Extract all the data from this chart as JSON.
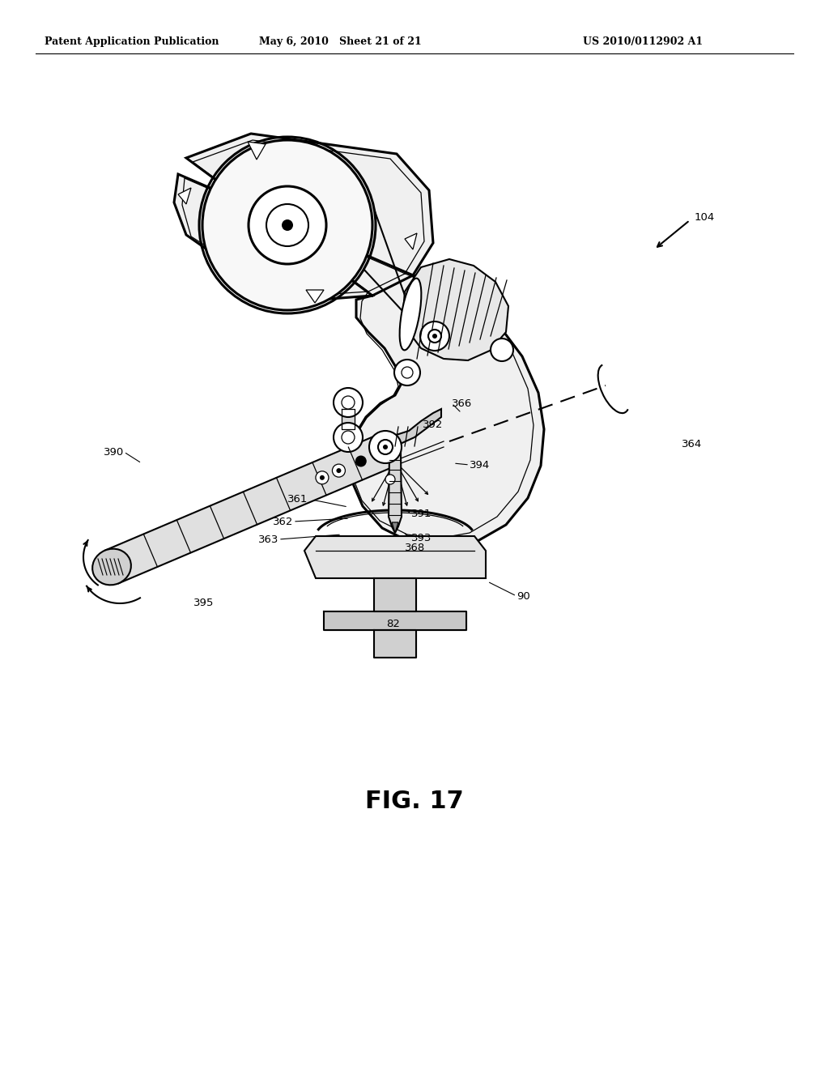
{
  "bg_color": "#ffffff",
  "header_left": "Patent Application Publication",
  "header_center": "May 6, 2010   Sheet 21 of 21",
  "header_right": "US 2010/0112902 A1",
  "fig_title": "FIG. 17",
  "title_fontsize": 22,
  "header_fontsize": 9,
  "label_fontsize": 9.5,
  "lw_thick": 2.2,
  "lw_main": 1.5,
  "lw_thin": 0.9
}
